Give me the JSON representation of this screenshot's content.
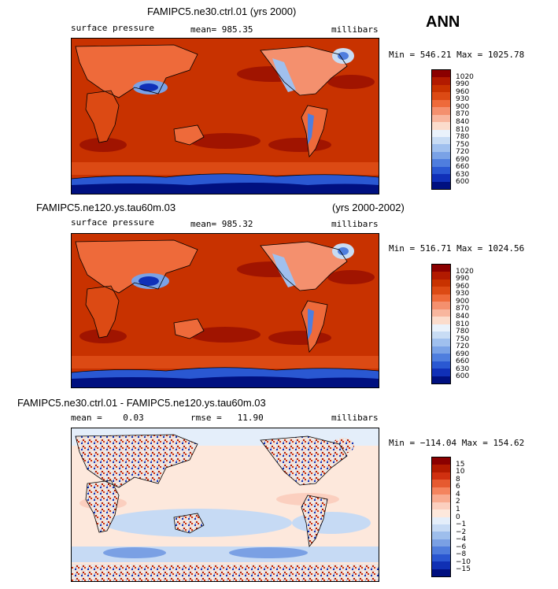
{
  "season": "ANN",
  "panels": [
    {
      "title_left": "FAMIPC5.ne30.ctrl.01 (yrs 2000)",
      "title_right": "",
      "variable": "surface pressure",
      "stat_text": "mean= 985.35",
      "units": "millibars",
      "minmax": "Min = 546.21 Max = 1025.78",
      "colorbar": {
        "labels": [
          "1020",
          "990",
          "960",
          "930",
          "900",
          "870",
          "840",
          "810",
          "780",
          "750",
          "720",
          "690",
          "660",
          "630",
          "600"
        ],
        "colors": [
          "#8b0000",
          "#b21a00",
          "#c83200",
          "#dc4a14",
          "#ee6a3a",
          "#f4906e",
          "#f8b69e",
          "#fbdccc",
          "#eaf2fb",
          "#c8dcf4",
          "#a0c0ee",
          "#7aa2e6",
          "#4f7ede",
          "#2a58d2",
          "#1030b8",
          "#001080"
        ]
      }
    },
    {
      "title_left": "FAMIPC5.ne120.ys.tau60m.03",
      "title_right": "(yrs 2000-2002)",
      "variable": "surface pressure",
      "stat_text": "mean= 985.32",
      "units": "millibars",
      "minmax": "Min = 516.71 Max = 1024.56",
      "colorbar": {
        "labels": [
          "1020",
          "990",
          "960",
          "930",
          "900",
          "870",
          "840",
          "810",
          "780",
          "750",
          "720",
          "690",
          "660",
          "630",
          "600"
        ],
        "colors": [
          "#8b0000",
          "#b21a00",
          "#c83200",
          "#dc4a14",
          "#ee6a3a",
          "#f4906e",
          "#f8b69e",
          "#fbdccc",
          "#eaf2fb",
          "#c8dcf4",
          "#a0c0ee",
          "#7aa2e6",
          "#4f7ede",
          "#2a58d2",
          "#1030b8",
          "#001080"
        ]
      }
    },
    {
      "title_left": "FAMIPC5.ne30.ctrl.01 - FAMIPC5.ne120.ys.tau60m.03",
      "title_right": "",
      "variable": "",
      "mean_text": "mean =    0.03",
      "rmse_text": "rmse =   11.90",
      "units": "millibars",
      "minmax": "Min = −114.04 Max = 154.62",
      "colorbar": {
        "labels": [
          "15",
          "10",
          "8",
          "6",
          "4",
          "2",
          "1",
          "0",
          "−1",
          "−2",
          "−4",
          "−6",
          "−8",
          "−10",
          "−15"
        ],
        "colors": [
          "#8b0000",
          "#b21a00",
          "#d03010",
          "#e65a30",
          "#f4845e",
          "#f8ab90",
          "#fbcfbf",
          "#fde8dc",
          "#e4eefa",
          "#c6daf4",
          "#9ebeec",
          "#7aa0e4",
          "#4f7cdc",
          "#2a56d0",
          "#1030b4",
          "#001080"
        ]
      }
    }
  ]
}
